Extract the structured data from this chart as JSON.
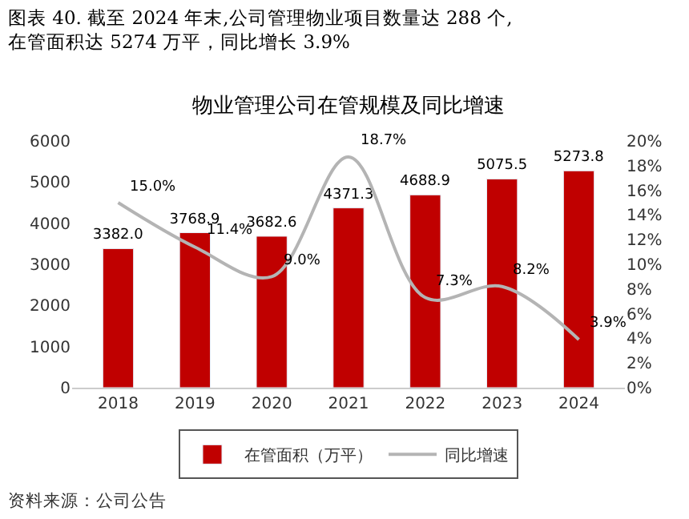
{
  "chart_data": {
    "type": "bar",
    "title": "图表 40. 截至 2024 年末,公司管理物业项目数量达 288 个,\n在管面积达 5274 万平，同比增长 3.9%",
    "subtitle": "物业管理公司在管规模及同比增速",
    "categories": [
      "2018",
      "2019",
      "2020",
      "2021",
      "2022",
      "2023",
      "2024"
    ],
    "series": [
      {
        "name": "在管面积（万平）",
        "color": "#c00000",
        "values": [
          3382.0,
          3768.9,
          3682.6,
          4371.3,
          4688.9,
          5075.5,
          5273.8
        ],
        "value_labels": [
          "3382.0",
          "3768.9",
          "3682.6",
          "4371.3",
          "4688.9",
          "5075.5",
          "5273.8"
        ]
      },
      {
        "name": "同比增速",
        "type": "line",
        "axis": "y2",
        "color": "#b4b4b4",
        "values": [
          15.0,
          11.4,
          9.0,
          18.7,
          7.3,
          8.2,
          3.9
        ],
        "value_labels": [
          "15.0%",
          "11.4%",
          "9.0%",
          "18.7%",
          "7.3%",
          "8.2%",
          "3.9%"
        ]
      }
    ],
    "ylim": [
      0,
      6000
    ],
    "yticks": [
      0,
      1000,
      2000,
      3000,
      4000,
      5000,
      6000
    ],
    "y2lim": [
      0,
      20
    ],
    "y2ticks": [
      {
        "value": 0,
        "label": "0%"
      },
      {
        "value": 2,
        "label": "2%"
      },
      {
        "value": 4,
        "label": "4%"
      },
      {
        "value": 6,
        "label": "6%"
      },
      {
        "value": 8,
        "label": "8%"
      },
      {
        "value": 10,
        "label": "10%"
      },
      {
        "value": 12,
        "label": "12%"
      },
      {
        "value": 14,
        "label": "14%"
      },
      {
        "value": 16,
        "label": "16%"
      },
      {
        "value": 18,
        "label": "18%"
      },
      {
        "value": 20,
        "label": "20%"
      }
    ],
    "legend": "bottom",
    "marker": "none",
    "line_style": "solid",
    "annotations": [
      "资料来源：公司公告"
    ]
  }
}
